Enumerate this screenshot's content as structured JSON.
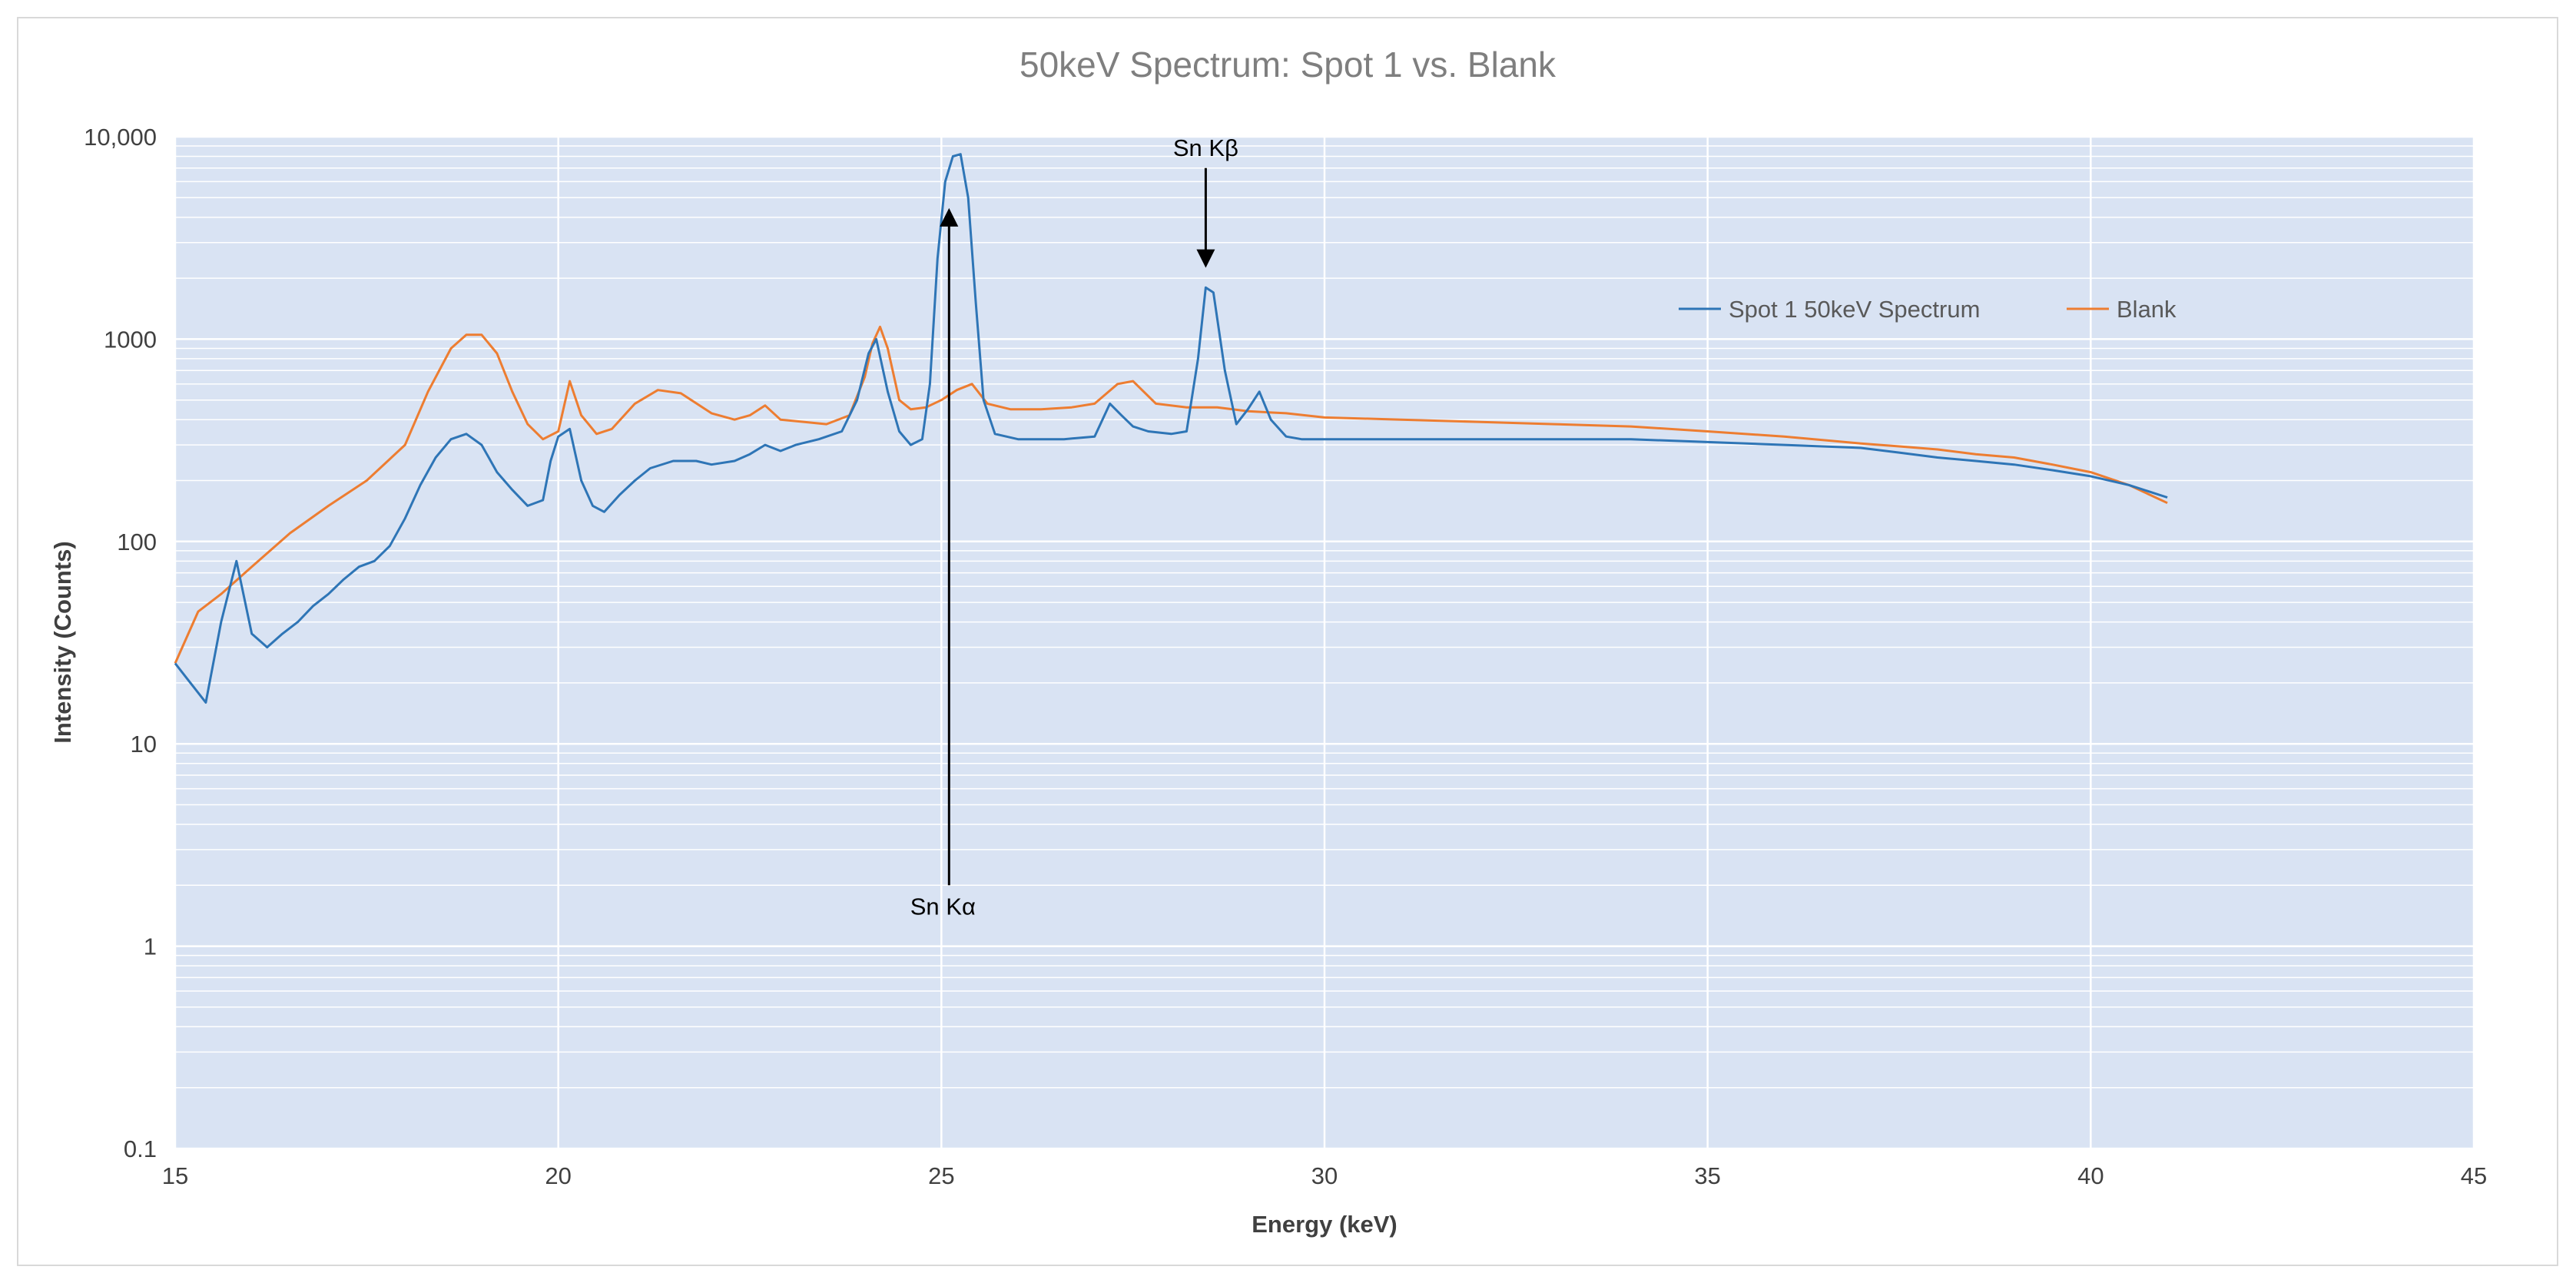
{
  "chart_data": {
    "type": "line",
    "title": "50keV Spectrum: Spot 1 vs. Blank",
    "xlabel": "Energy (keV)",
    "ylabel": "Intensity (Counts)",
    "xlim": [
      15,
      45
    ],
    "ylim": [
      0.1,
      10000
    ],
    "yscale": "log",
    "x_ticks": [
      "15",
      "20",
      "25",
      "30",
      "35",
      "40",
      "45"
    ],
    "y_ticks": [
      "0.1",
      "1",
      "10",
      "100",
      "1000",
      "10,000"
    ],
    "grid": true,
    "legend_position": "upper-right",
    "series": [
      {
        "name": "Spot 1 50keV Spectrum",
        "color": "#2e75b6",
        "x": [
          15.0,
          15.2,
          15.4,
          15.6,
          15.8,
          16.0,
          16.2,
          16.4,
          16.6,
          16.8,
          17.0,
          17.2,
          17.4,
          17.6,
          17.8,
          18.0,
          18.2,
          18.4,
          18.6,
          18.8,
          19.0,
          19.2,
          19.4,
          19.6,
          19.8,
          19.9,
          20.0,
          20.15,
          20.3,
          20.45,
          20.6,
          20.8,
          21.0,
          21.2,
          21.5,
          21.8,
          22.0,
          22.3,
          22.5,
          22.7,
          22.9,
          23.1,
          23.4,
          23.7,
          23.9,
          24.05,
          24.15,
          24.3,
          24.45,
          24.6,
          24.75,
          24.85,
          24.95,
          25.05,
          25.15,
          25.25,
          25.35,
          25.45,
          25.55,
          25.7,
          26.0,
          26.3,
          26.6,
          27.0,
          27.2,
          27.35,
          27.5,
          27.7,
          28.0,
          28.2,
          28.35,
          28.45,
          28.55,
          28.7,
          28.85,
          29.0,
          29.15,
          29.3,
          29.5,
          29.7,
          30.0,
          31.0,
          32.0,
          33.0,
          34.0,
          35.0,
          36.0,
          37.0,
          37.5,
          38.0,
          38.5,
          39.0,
          39.5,
          40.0,
          40.5,
          41.0
        ],
        "values": [
          25,
          20,
          16,
          40,
          80,
          35,
          30,
          35,
          40,
          48,
          55,
          65,
          75,
          80,
          95,
          130,
          190,
          260,
          320,
          340,
          300,
          220,
          180,
          150,
          160,
          250,
          330,
          360,
          200,
          150,
          140,
          170,
          200,
          230,
          250,
          250,
          240,
          250,
          270,
          300,
          280,
          300,
          320,
          350,
          500,
          850,
          1000,
          550,
          350,
          300,
          320,
          600,
          2500,
          6000,
          8000,
          8200,
          5000,
          1500,
          500,
          340,
          320,
          320,
          320,
          330,
          480,
          420,
          370,
          350,
          340,
          350,
          800,
          1800,
          1700,
          700,
          380,
          450,
          550,
          400,
          330,
          320,
          320,
          320,
          320,
          320,
          320,
          310,
          300,
          290,
          275,
          260,
          250,
          240,
          225,
          210,
          190,
          165
        ]
      },
      {
        "name": "Blank",
        "color": "#ed7d31",
        "x": [
          15.0,
          15.3,
          15.6,
          16.0,
          16.5,
          17.0,
          17.5,
          18.0,
          18.3,
          18.6,
          18.8,
          19.0,
          19.2,
          19.4,
          19.6,
          19.8,
          20.0,
          20.15,
          20.3,
          20.5,
          20.7,
          21.0,
          21.3,
          21.6,
          22.0,
          22.3,
          22.5,
          22.7,
          22.9,
          23.2,
          23.5,
          23.8,
          24.0,
          24.1,
          24.2,
          24.3,
          24.45,
          24.6,
          24.8,
          25.0,
          25.2,
          25.4,
          25.6,
          25.9,
          26.3,
          26.7,
          27.0,
          27.3,
          27.5,
          27.8,
          28.2,
          28.6,
          29.0,
          29.5,
          30.0,
          31.0,
          32.0,
          33.0,
          34.0,
          35.0,
          36.0,
          37.0,
          37.5,
          38.0,
          38.5,
          39.0,
          39.5,
          40.0,
          40.5,
          41.0
        ],
        "values": [
          25,
          45,
          55,
          75,
          110,
          150,
          200,
          300,
          550,
          900,
          1050,
          1050,
          850,
          550,
          380,
          320,
          350,
          620,
          420,
          340,
          360,
          480,
          560,
          540,
          430,
          400,
          420,
          470,
          400,
          390,
          380,
          420,
          650,
          950,
          1150,
          900,
          500,
          450,
          460,
          500,
          560,
          600,
          480,
          450,
          450,
          460,
          480,
          600,
          620,
          480,
          460,
          460,
          440,
          430,
          410,
          400,
          390,
          380,
          370,
          350,
          330,
          305,
          295,
          285,
          270,
          260,
          240,
          220,
          190,
          155
        ]
      }
    ],
    "annotations": [
      {
        "text": "Sn Kα",
        "x": 25.1,
        "y_from": 2,
        "y_to": 4000,
        "arrow": "up"
      },
      {
        "text": "Sn Kβ",
        "x": 28.45,
        "y_from": 7000,
        "y_to": 2500,
        "arrow": "down"
      }
    ]
  }
}
